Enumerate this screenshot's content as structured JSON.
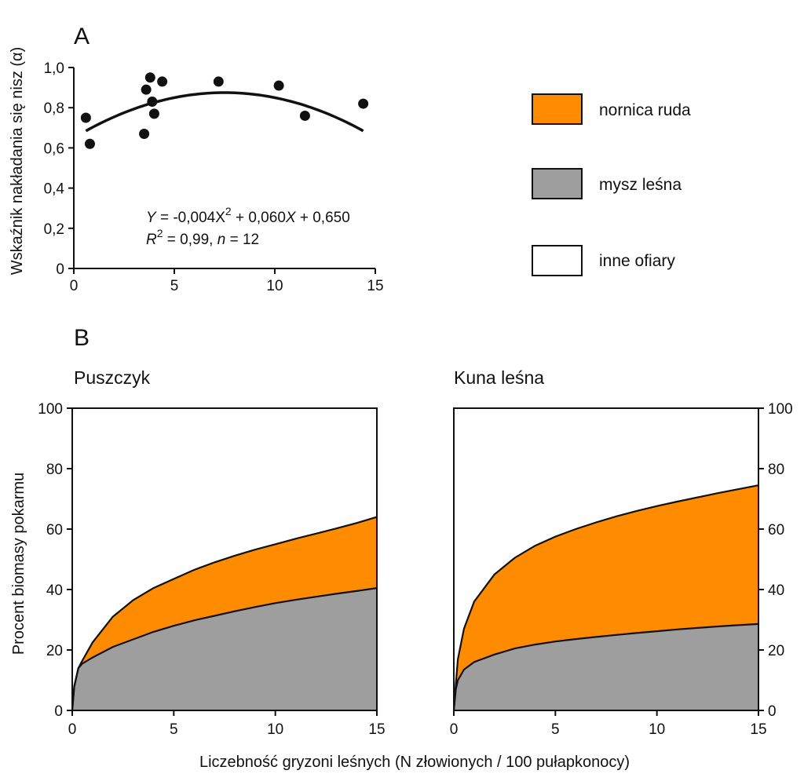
{
  "figure": {
    "panel_a_letter": "A",
    "panel_b_letter": "B",
    "xlabel_bottom": "Liczebność gryzoni leśnych (N złowionych / 100 pułapkonocy)",
    "colors": {
      "orange": "#ff8c00",
      "gray": "#9e9e9e",
      "white": "#ffffff",
      "ink": "#111111"
    }
  },
  "legend": {
    "items": [
      {
        "label": "nornica ruda",
        "color": "#ff8c00"
      },
      {
        "label": "mysz leśna",
        "color": "#9e9e9e"
      },
      {
        "label": "inne ofiary",
        "color": "#ffffff"
      }
    ]
  },
  "chart_data": [
    {
      "id": "A",
      "type": "scatter",
      "title": "A",
      "ylabel": "Wskaźnik nakładania się nisz (α)",
      "xlabel": "",
      "xlim": [
        0,
        15
      ],
      "ylim": [
        0,
        1.0
      ],
      "xticks": [
        0,
        5,
        10,
        15
      ],
      "yticks": [
        0,
        0.2,
        0.4,
        0.6,
        0.8,
        1.0
      ],
      "ytick_labels": [
        "0",
        "0,2",
        "0,4",
        "0,6",
        "0,8",
        "1,0"
      ],
      "points": {
        "x": [
          0.6,
          0.8,
          3.5,
          3.6,
          3.8,
          3.9,
          4.0,
          4.4,
          7.2,
          10.2,
          11.5,
          14.4
        ],
        "y": [
          0.75,
          0.62,
          0.67,
          0.89,
          0.95,
          0.83,
          0.77,
          0.93,
          0.93,
          0.91,
          0.76,
          0.82
        ]
      },
      "fit": {
        "a": -0.004,
        "b": 0.06,
        "c": 0.65,
        "xrange": [
          0.6,
          14.4
        ]
      },
      "equation": {
        "line1_prefix": "Y",
        "line1_mid": " = -0,004X",
        "line1_exp": "2",
        "line1_rest_a": " + 0,060",
        "line1_rest_x": "X",
        "line1_rest_b": " + 0,650",
        "line2_r": "R",
        "line2_exp": "2",
        "line2_mid": " = 0,99, ",
        "line2_n": "n",
        "line2_end": " = 12"
      }
    },
    {
      "id": "B1",
      "type": "area",
      "title": "Puszczyk",
      "ylabel": "Procent biomasy pokarmu",
      "xlim": [
        0,
        15
      ],
      "ylim": [
        0,
        100
      ],
      "xticks": [
        0,
        5,
        10,
        15
      ],
      "yticks": [
        0,
        20,
        40,
        60,
        80,
        100
      ],
      "x": [
        0,
        0.1,
        0.3,
        0.5,
        1,
        2,
        3,
        4,
        5,
        6,
        7,
        8,
        9,
        10,
        11,
        12,
        13,
        14,
        15
      ],
      "series": [
        {
          "name": "mysz leśna",
          "values": [
            0,
            8,
            14,
            15.5,
            17.5,
            21,
            23.5,
            26,
            28,
            29.8,
            31.3,
            32.8,
            34.2,
            35.5,
            36.6,
            37.6,
            38.6,
            39.5,
            40.5
          ]
        },
        {
          "name": "nornica ruda",
          "values": [
            0,
            8,
            14,
            16.5,
            22.5,
            31,
            36.5,
            40.5,
            43.5,
            46.5,
            49,
            51.2,
            53.2,
            55,
            56.8,
            58.5,
            60.2,
            62,
            64
          ]
        }
      ]
    },
    {
      "id": "B2",
      "type": "area",
      "title": "Kuna leśna",
      "ylabel": "",
      "xlim": [
        0,
        15
      ],
      "ylim": [
        0,
        100
      ],
      "xticks": [
        0,
        5,
        10,
        15
      ],
      "yticks": [
        0,
        20,
        40,
        60,
        80,
        100
      ],
      "x": [
        0,
        0.1,
        0.2,
        0.5,
        1,
        2,
        3,
        4,
        5,
        6,
        7,
        8,
        9,
        10,
        11,
        12,
        13,
        14,
        15
      ],
      "series": [
        {
          "name": "mysz leśna",
          "values": [
            0,
            7,
            10,
            13.5,
            16,
            18.5,
            20.5,
            21.8,
            22.8,
            23.6,
            24.3,
            25,
            25.6,
            26.2,
            26.8,
            27.3,
            27.8,
            28.2,
            28.6
          ]
        },
        {
          "name": "nornica ruda",
          "values": [
            0,
            9,
            17,
            27,
            36,
            45,
            50.5,
            54.5,
            57.5,
            60,
            62.2,
            64.2,
            66,
            67.6,
            69.1,
            70.5,
            71.9,
            73.2,
            74.5
          ]
        }
      ]
    }
  ]
}
